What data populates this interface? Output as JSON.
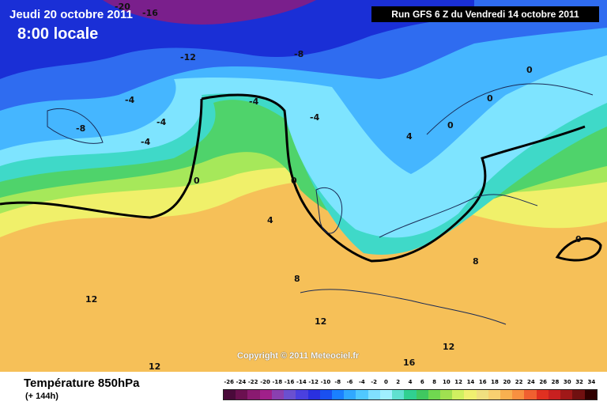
{
  "header": {
    "date": "Jeudi 20 octobre 2011",
    "time": "8:00 locale",
    "run": "Run GFS 6 Z du Vendredi 14 octobre 2011"
  },
  "map": {
    "copyright": "Copyright © 2011 Meteociel.fr",
    "isotherm_labels": [
      "-20",
      "-16",
      "-12",
      "-8",
      "-8",
      "-4",
      "-4",
      "-4",
      "-4",
      "-4",
      "0",
      "0",
      "0",
      "0",
      "0",
      "0",
      "4",
      "4",
      "8",
      "8",
      "12",
      "12",
      "12",
      "12",
      "16"
    ],
    "colors": {
      "violet": "#7a1f8c",
      "deep_blue": "#1a2fd6",
      "blue": "#2f6cf0",
      "light_blue": "#45b6ff",
      "cyan": "#7ee4ff",
      "aqua": "#3fd9c8",
      "green": "#4fd36b",
      "lime": "#a6e85a",
      "yellow": "#f0f06a",
      "light_yellow": "#f7f0a0",
      "orange": "#f6c058"
    }
  },
  "footer": {
    "variable": "Température 850hPa",
    "lead": "(+ 144h)",
    "scale_labels": [
      "-26",
      "-24",
      "-22",
      "-20",
      "-18",
      "-16",
      "-14",
      "-12",
      "-10",
      "-8",
      "-6",
      "-4",
      "-2",
      "0",
      "2",
      "4",
      "6",
      "8",
      "10",
      "12",
      "14",
      "16",
      "18",
      "20",
      "22",
      "24",
      "26",
      "28",
      "30",
      "32",
      "34"
    ],
    "scale_colors": [
      "#4a0a3a",
      "#6b1050",
      "#8a1a70",
      "#a0208a",
      "#8a40b0",
      "#6a50d0",
      "#4a40e0",
      "#2a30e0",
      "#1a50f0",
      "#1a80ff",
      "#30a8ff",
      "#50c8ff",
      "#80e0ff",
      "#a0f0ff",
      "#60e0d0",
      "#30d090",
      "#40c860",
      "#70d850",
      "#a0e050",
      "#d0f060",
      "#f0f070",
      "#f0e080",
      "#f8d070",
      "#f8b050",
      "#f89040",
      "#f06030",
      "#e03020",
      "#c82020",
      "#a01818",
      "#701010",
      "#300000"
    ]
  }
}
